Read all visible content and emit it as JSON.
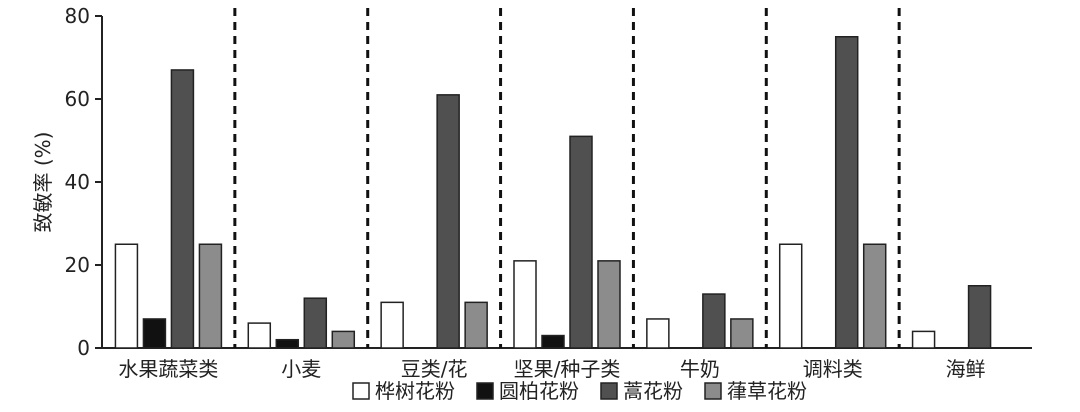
{
  "chart_data": {
    "type": "bar",
    "ylabel": "致敏率 (%)",
    "ylim": [
      0,
      80
    ],
    "yticks": [
      0,
      20,
      40,
      60,
      80
    ],
    "grid": false,
    "legend_position": "bottom",
    "categories": [
      "水果蔬菜类",
      "小麦",
      "豆类/花",
      "坚果/种子类",
      "牛奶",
      "调料类",
      "海鲜"
    ],
    "series": [
      {
        "name": "桦树花粉",
        "color": "#ffffff",
        "values": [
          25,
          6,
          11,
          21,
          7,
          25,
          4
        ]
      },
      {
        "name": "圆柏花粉",
        "color": "#111111",
        "values": [
          7,
          2,
          0,
          3,
          0,
          0,
          0
        ]
      },
      {
        "name": "蒿花粉",
        "color": "#505050",
        "values": [
          67,
          12,
          61,
          51,
          13,
          75,
          15
        ]
      },
      {
        "name": "葎草花粉",
        "color": "#8c8c8c",
        "values": [
          25,
          4,
          11,
          21,
          7,
          25,
          0
        ]
      }
    ],
    "separators": "dashed vertical lines between categories"
  }
}
